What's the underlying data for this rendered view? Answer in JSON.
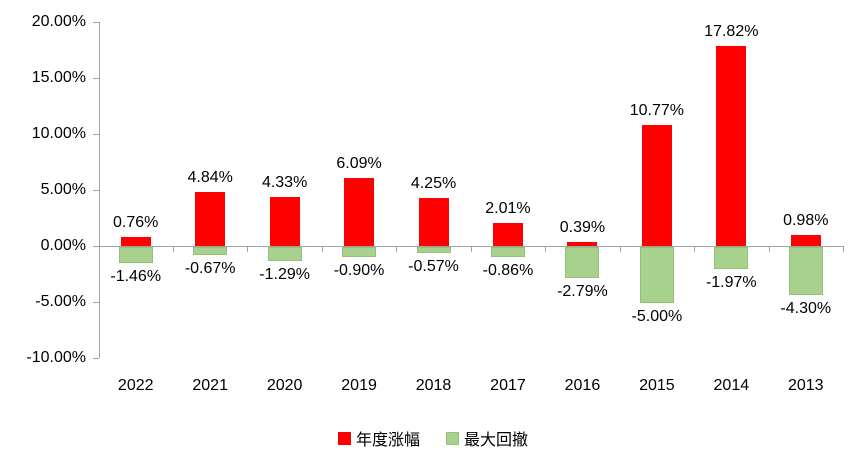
{
  "chart_data": {
    "type": "bar",
    "categories": [
      "2022",
      "2021",
      "2020",
      "2019",
      "2018",
      "2017",
      "2016",
      "2015",
      "2014",
      "2013"
    ],
    "series": [
      {
        "name": "年度涨幅",
        "color": "#ff0000",
        "border_color": "#ff0000",
        "values": [
          0.76,
          4.84,
          4.33,
          6.09,
          4.25,
          2.01,
          0.39,
          10.77,
          17.82,
          0.98
        ],
        "labels": [
          "0.76%",
          "4.84%",
          "4.33%",
          "6.09%",
          "4.25%",
          "2.01%",
          "0.39%",
          "10.77%",
          "17.82%",
          "0.98%"
        ]
      },
      {
        "name": "最大回撤",
        "color": "#a9d18e",
        "border_color": "#93c178",
        "values": [
          -1.46,
          -0.67,
          -1.29,
          -0.9,
          -0.57,
          -0.86,
          -2.79,
          -5.0,
          -1.97,
          -4.3
        ],
        "labels": [
          "-1.46%",
          "-0.67%",
          "-1.29%",
          "-0.90%",
          "-0.57%",
          "-0.86%",
          "-2.79%",
          "-5.00%",
          "-1.97%",
          "-4.30%"
        ]
      }
    ],
    "y_axis": {
      "min": -10,
      "max": 20,
      "ticks": [
        {
          "value": 20,
          "label": "20.00%"
        },
        {
          "value": 15,
          "label": "15.00%"
        },
        {
          "value": 10,
          "label": "10.00%"
        },
        {
          "value": 5,
          "label": "5.00%"
        },
        {
          "value": 0,
          "label": "0.00%"
        },
        {
          "value": -5,
          "label": "-5.00%"
        },
        {
          "value": -10,
          "label": "-10.00%"
        }
      ]
    },
    "legend_position": "bottom",
    "grid": false,
    "axis_color": "#a3a3a3",
    "title": "",
    "xlabel": "",
    "ylabel": ""
  }
}
